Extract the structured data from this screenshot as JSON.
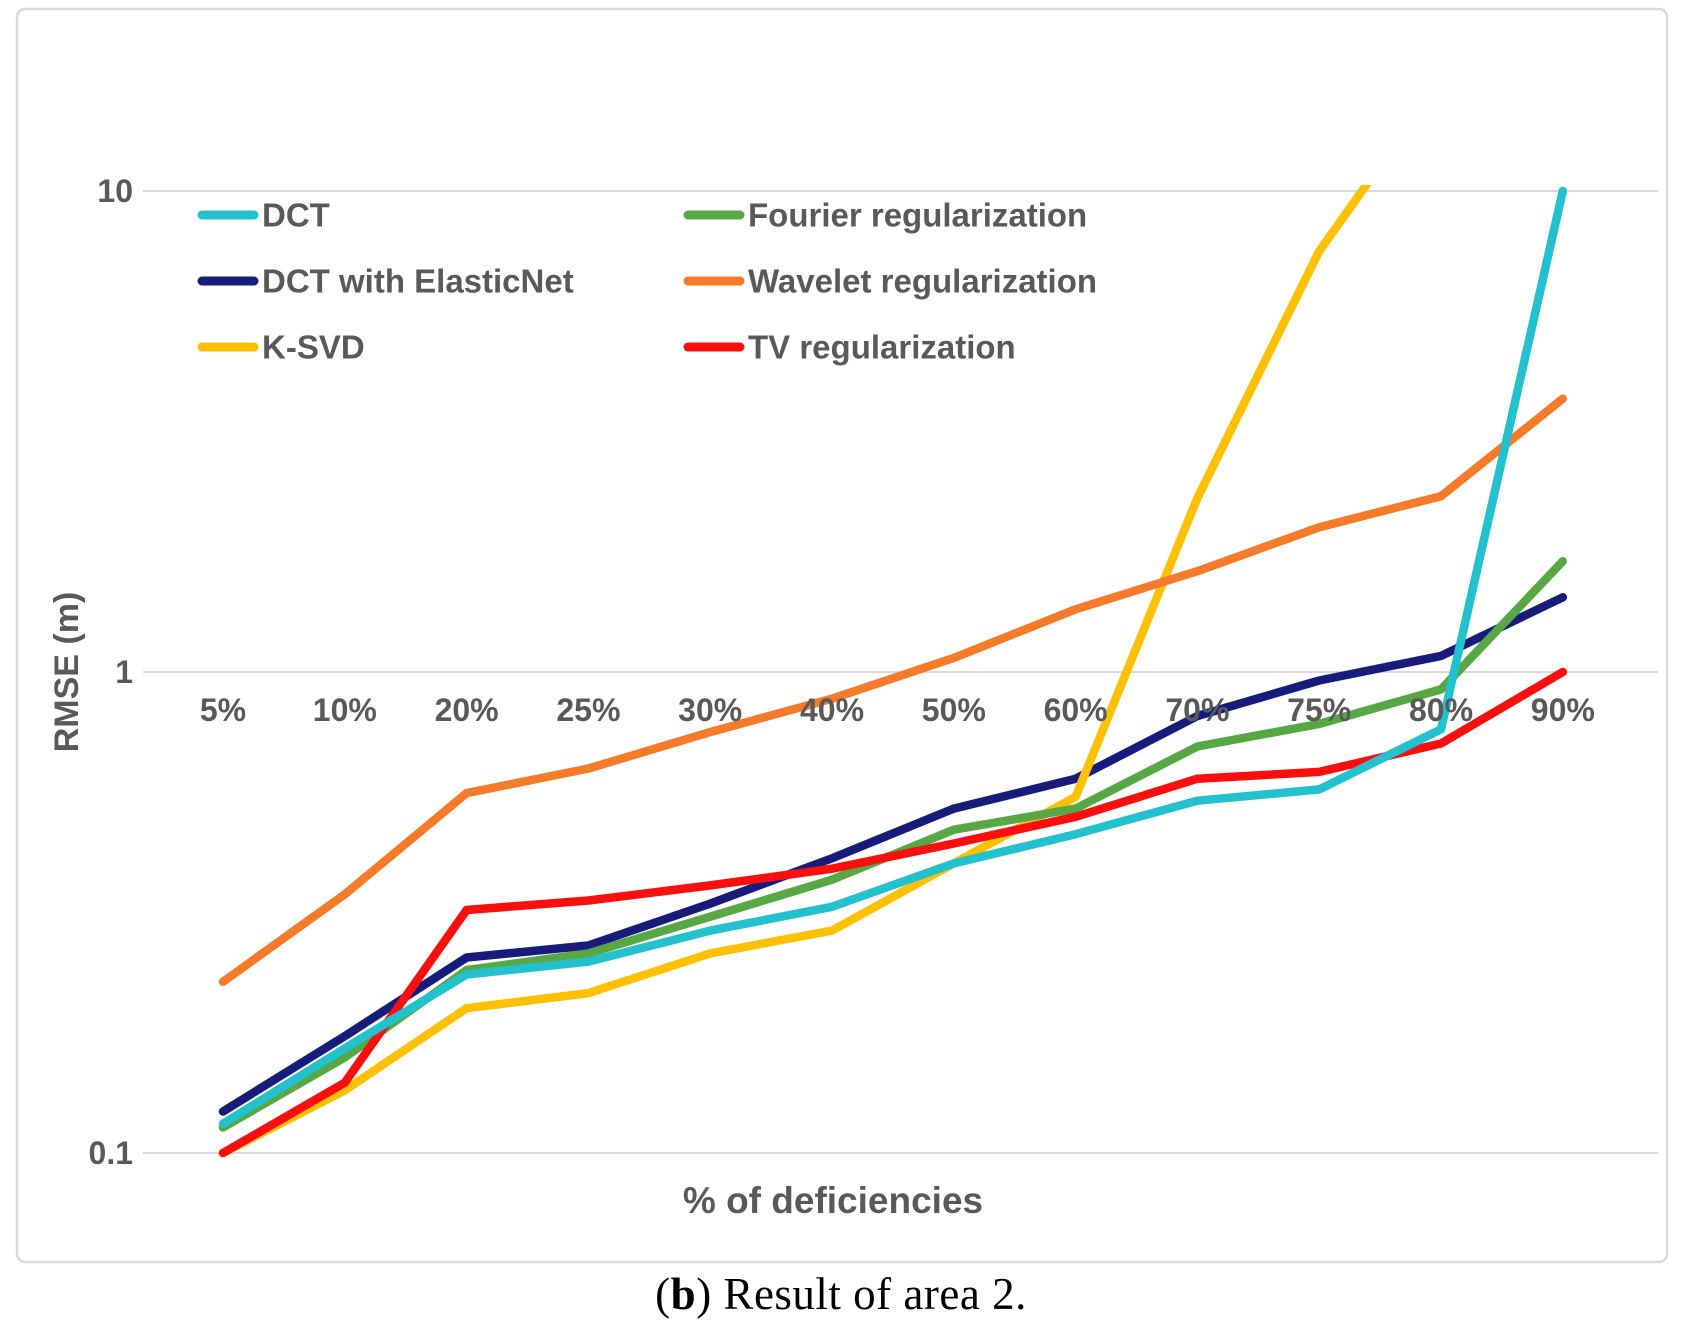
{
  "figure": {
    "caption": {
      "open_paren": "(",
      "bold_letter": "b",
      "rest": ") Result of area 2."
    }
  },
  "chart_data": {
    "type": "line",
    "title": "",
    "xlabel": "% of deficiencies",
    "ylabel": "RMSE (m)",
    "x_categories": [
      "5%",
      "10%",
      "20%",
      "25%",
      "30%",
      "40%",
      "50%",
      "60%",
      "70%",
      "75%",
      "80%",
      "90%"
    ],
    "y_scale": "log10",
    "ylim": [
      0.1,
      10
    ],
    "y_ticks": [
      10,
      1,
      0.1
    ],
    "grid": "horizontal gridlines only at decades",
    "legend_position": "two columns, top-left inside plot area",
    "series": [
      {
        "name": "DCT",
        "color": "#23C0CE",
        "values": [
          0.115,
          0.165,
          0.235,
          0.25,
          0.29,
          0.325,
          0.4,
          0.46,
          0.54,
          0.57,
          0.76,
          10
        ]
      },
      {
        "name": "DCT with ElasticNet",
        "color": "#171C7A",
        "values": [
          0.122,
          0.175,
          0.255,
          0.27,
          0.33,
          0.41,
          0.52,
          0.6,
          0.81,
          0.96,
          1.08,
          1.43
        ]
      },
      {
        "name": "K-SVD",
        "color": "#FFC000",
        "values": [
          0.1,
          0.135,
          0.2,
          0.215,
          0.26,
          0.29,
          0.4,
          0.55,
          2.3,
          7.5,
          17,
          null
        ],
        "note": "line rises above the y-axis maximum of 10 between 75% and 80% and is clipped at the top of the plot; 80% value estimated from drawn slope, 90% not visible"
      },
      {
        "name": "Fourier regularization",
        "color": "#57A845",
        "values": [
          0.113,
          0.158,
          0.24,
          0.26,
          0.31,
          0.37,
          0.47,
          0.52,
          0.7,
          0.78,
          0.92,
          1.7
        ]
      },
      {
        "name": "Wavelet regularization",
        "color": "#F57B2B",
        "values": [
          0.227,
          0.345,
          0.56,
          0.63,
          0.75,
          0.88,
          1.07,
          1.35,
          1.62,
          2.0,
          2.32,
          3.7
        ]
      },
      {
        "name": "TV regularization",
        "color": "#FA0F0F",
        "values": [
          0.1,
          0.14,
          0.32,
          0.335,
          0.36,
          0.39,
          0.44,
          0.5,
          0.6,
          0.62,
          0.71,
          1.0
        ]
      }
    ],
    "colors": {
      "text": "#595959",
      "gridline": "#D9D9D9",
      "chart_border": "#D9D9D9",
      "background": "#FFFFFF"
    }
  }
}
